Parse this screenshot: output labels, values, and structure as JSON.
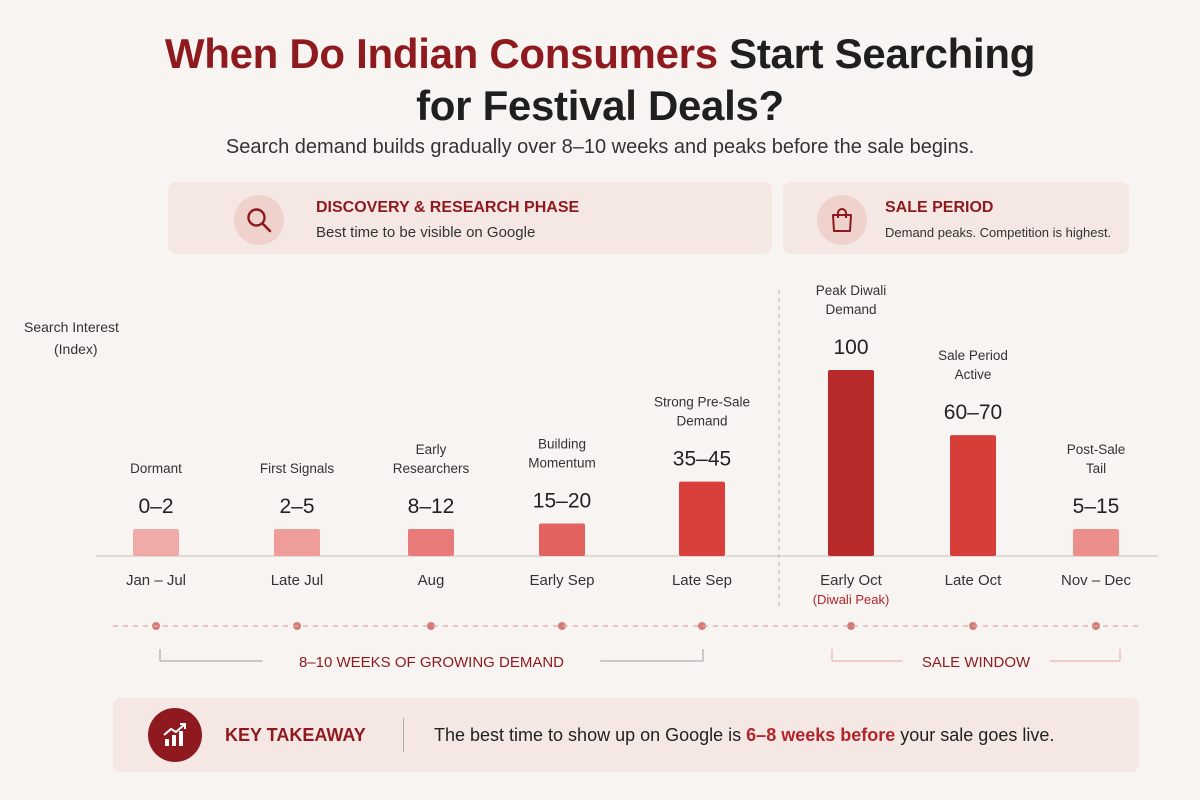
{
  "title": {
    "line1_accent": "When Do Indian Consumers",
    "line1_rest": "Start Searching",
    "line2": "for Festival Deals?"
  },
  "subtitle": "Search demand builds gradually over 8–10 weeks and peaks before the sale begins.",
  "phases": {
    "discovery": {
      "title": "DISCOVERY & RESEARCH PHASE",
      "desc": "Best time to be visible on Google",
      "icon": "search-icon"
    },
    "sale": {
      "title": "SALE PERIOD",
      "desc": "Demand peaks. Competition is highest.",
      "icon": "shopping-bag-icon"
    }
  },
  "yaxis": {
    "line1": "Search Interest",
    "line2": "(Index)"
  },
  "chart_data": {
    "type": "bar",
    "categories": [
      "Jan – Jul",
      "Late Jul",
      "Aug",
      "Early Sep",
      "Late Sep",
      "Early Oct",
      "Late Oct",
      "Nov – Dec"
    ],
    "category_notes": [
      "",
      "",
      "",
      "",
      "",
      "(Diwali Peak)",
      "",
      ""
    ],
    "value_labels": [
      "0–2",
      "2–5",
      "8–12",
      "15–20",
      "35–45",
      "100",
      "60–70",
      "5–15"
    ],
    "values": [
      1,
      3.5,
      10,
      17.5,
      40,
      100,
      65,
      10
    ],
    "annotations": [
      "Dormant",
      "First Signals",
      "Early\nResearchers",
      "Building\nMomentum",
      "Strong Pre-Sale\nDemand",
      "Peak Diwali\nDemand",
      "Sale Period\nActive",
      "Post-Sale\nTail"
    ],
    "ylabel": "Search Interest (Index)",
    "ylim": [
      0,
      100
    ],
    "grid": false,
    "colors": [
      "#f0aaa8",
      "#ee9d9b",
      "#e87b79",
      "#e2625f",
      "#d9403b",
      "#b82a2a",
      "#d63e3a",
      "#ec8f8c"
    ],
    "ranges": [
      {
        "label": "8–10 WEEKS OF GROWING DEMAND",
        "from": 0,
        "to": 4
      },
      {
        "label": "SALE WINDOW",
        "from": 5,
        "to": 7
      }
    ]
  },
  "takeaway": {
    "title": "KEY TAKEAWAY",
    "text_before": "The best time to show up on Google is ",
    "text_highlight": "6–8 weeks before",
    "text_after": " your sale goes live.",
    "icon": "trending-chart-icon"
  },
  "colors": {
    "accent": "#8e1a1f",
    "highlight": "#b3242a",
    "panel": "#f5e7e3",
    "background": "#f8f4f1"
  }
}
